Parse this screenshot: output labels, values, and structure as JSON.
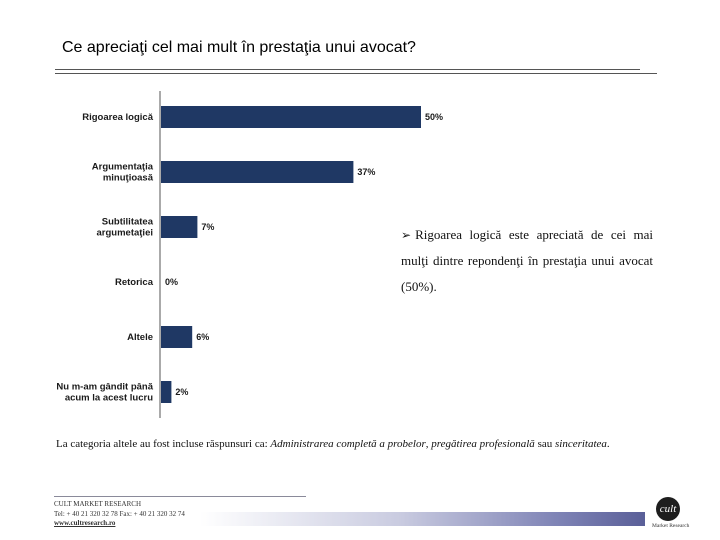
{
  "title": "Ce apreciaţi cel mai mult în prestaţia unui avocat?",
  "chart_data": {
    "type": "bar",
    "orientation": "horizontal",
    "categories": [
      [
        "Rigoarea logică"
      ],
      [
        "Argumentaţia",
        "minuţioasă"
      ],
      [
        "Subtilitatea",
        "argumetaţiei"
      ],
      [
        "Retorica"
      ],
      [
        "Altele"
      ],
      [
        "Nu m-am gândit până",
        "acum la acest lucru"
      ]
    ],
    "values": [
      50,
      37,
      7,
      0,
      6,
      2
    ],
    "value_labels": [
      "50%",
      "37%",
      "7%",
      "0%",
      "6%",
      "2%"
    ],
    "xlim": [
      0,
      50
    ],
    "bar_color": "#1f3864",
    "grid": false,
    "legend": "none"
  },
  "callout": {
    "bullet": "➢",
    "text": "Rigoarea logică este apreciată de cei mai mulţi dintre repondenţi în prestaţia unui avocat (50%)."
  },
  "note": {
    "prefix": "La categoria altele au fost incluse răspunsuri ca: ",
    "item1": "Administrarea completă a probelor",
    "sep1": ", ",
    "item2": "pregătirea profesională",
    "sep2": " sau ",
    "item3": "sinceritatea",
    "suffix": "."
  },
  "footer": {
    "company": "CULT MARKET RESEARCH",
    "contact": "Tel: + 40 21 320 32 78  Fax: + 40 21 320 32 74",
    "website": "www.cultresearch.ro",
    "logo_mark": "cult",
    "logo_caption": "Market Research"
  }
}
